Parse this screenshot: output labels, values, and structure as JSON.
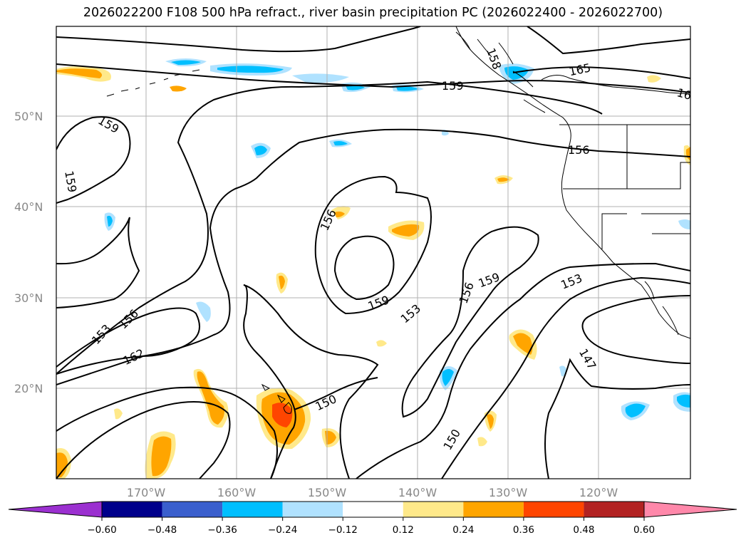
{
  "title": "2026022200 F108 500 hPa refract., river basin precipitation PC (2026022400 - 2026022700)",
  "map": {
    "lat_labels": [
      "50°N",
      "40°N",
      "30°N",
      "20°N"
    ],
    "lon_labels": [
      "170°W",
      "160°W",
      "150°W",
      "140°W",
      "130°W",
      "120°W"
    ],
    "contour_labels": [
      "159",
      "159",
      "156",
      "153",
      "162",
      "156",
      "159",
      "153",
      "156",
      "159",
      "150",
      "150",
      "153",
      "147",
      "156",
      "159",
      "165",
      "16",
      "158"
    ]
  },
  "colorbar": {
    "colors": [
      "#9b30d0",
      "#00008b",
      "#3a5fcd",
      "#00bfff",
      "#b0e2ff",
      "#ffffff",
      "#ffe98a",
      "#ffa500",
      "#ff4500",
      "#b22222",
      "#ff88aa"
    ],
    "ticks": [
      "−0.60",
      "−0.48",
      "−0.36",
      "−0.24",
      "−0.12",
      "0.12",
      "0.24",
      "0.36",
      "0.48",
      "0.60"
    ]
  }
}
